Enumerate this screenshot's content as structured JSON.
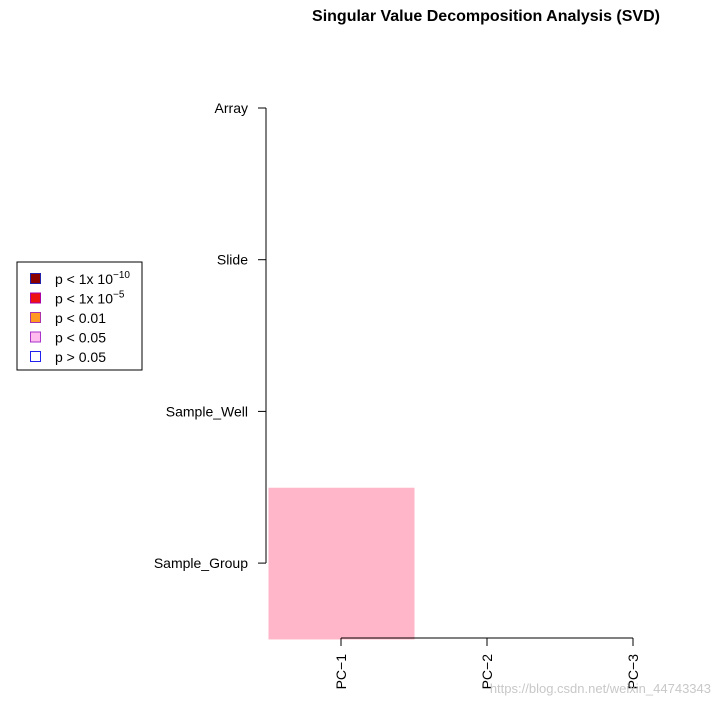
{
  "chart_data": {
    "type": "heatmap",
    "title": "Singular Value Decomposition Analysis (SVD)",
    "x_categories": [
      "PC−1",
      "PC−2",
      "PC−3"
    ],
    "y_categories": [
      "Array",
      "Slide",
      "Sample_Well",
      "Sample_Group"
    ],
    "cells": [
      {
        "row": "Sample_Group",
        "col": "PC−1",
        "level": "p < 0.05",
        "color": "#ffb6c8"
      }
    ],
    "legend": {
      "placement": "left",
      "entries": [
        {
          "prefix": "p < 1x 10",
          "exp": "−10",
          "fill": "#8b0000",
          "border": "#2222aa"
        },
        {
          "prefix": "p < 1x 10",
          "exp": "−5",
          "fill": "#ee1111",
          "border": "#aa00aa"
        },
        {
          "prefix": "p < 0.01",
          "exp": "",
          "fill": "#ff9922",
          "border": "#aa33aa"
        },
        {
          "prefix": "p < 0.05",
          "exp": "",
          "fill": "#ffbbee",
          "border": "#aa33cc"
        },
        {
          "prefix": "p > 0.05",
          "exp": "",
          "fill": "#ffffff",
          "border": "#2222ee"
        }
      ]
    }
  },
  "watermark": "https://blog.csdn.net/weixin_44743343"
}
